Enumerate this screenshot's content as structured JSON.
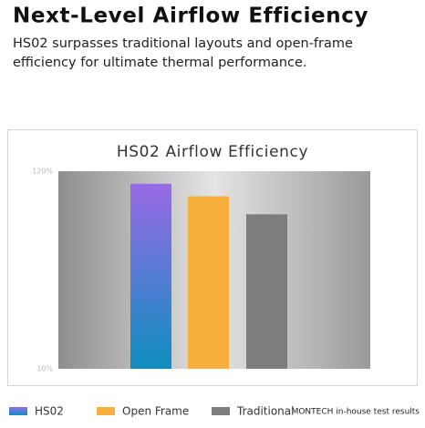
{
  "header": {
    "title": "Next-Level Airflow Efficiency",
    "subtitle_lines": [
      "HS02 surpasses traditional layouts and open-frame",
      "efficiency for ultimate thermal performance."
    ]
  },
  "chart_data": {
    "type": "bar",
    "title": "HS02 Airflow Efficiency",
    "categories": [
      "HS02",
      "Open Frame",
      "Traditional"
    ],
    "values": [
      113,
      106,
      96
    ],
    "colors": [
      "#5a7fdc",
      "#f6ae3c",
      "#7d7d7d"
    ],
    "gradient_first": [
      "#9a6ae6",
      "#0e8ec0"
    ],
    "ylim": [
      10,
      120
    ],
    "yticks": [
      {
        "value": 10,
        "label": "10%"
      },
      {
        "value": 120,
        "label": "120%"
      }
    ],
    "note": "MONTECH in-house test results"
  }
}
